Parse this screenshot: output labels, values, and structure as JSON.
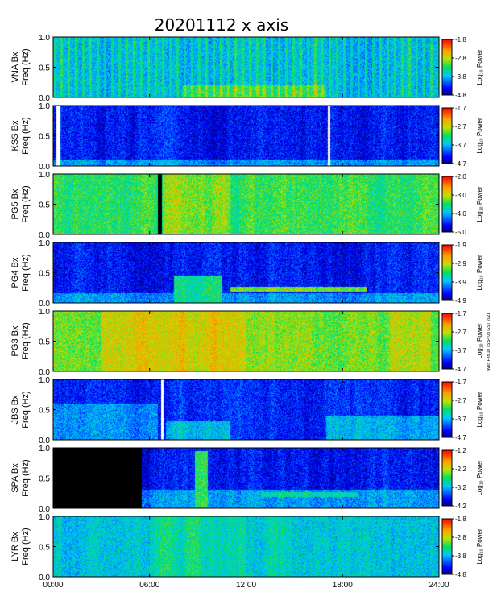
{
  "title": "20201112  x  axis",
  "footer_note": "Wed Feb 10 15:54:03 GST 2021",
  "x_axis": {
    "ticks": [
      "00:00",
      "06:00",
      "12:00",
      "18:00",
      "24:00"
    ],
    "tick_hours": [
      0,
      6,
      12,
      18,
      24
    ],
    "range_hours": [
      0,
      24
    ]
  },
  "chart_data": [
    {
      "type": "heatmap",
      "station_label": "VNA Bx",
      "ylabel": "Freq (Hz)",
      "ylim": [
        0.0,
        1.0
      ],
      "yticks": [
        "0.0",
        "0.5",
        "1.0"
      ],
      "colorbar_label": "Log₁₀ Power",
      "colorbar_ticks": [
        "-1.8",
        "-2.8",
        "-3.8",
        "-4.8"
      ],
      "colorbar_range": [
        -4.8,
        -1.8
      ],
      "background_level": 0.38,
      "vertical_stripes": true,
      "gaps": [],
      "features": [
        {
          "start_h": 8,
          "end_h": 17,
          "f_low": 0.0,
          "f_high": 0.2,
          "level": 0.55
        }
      ]
    },
    {
      "type": "heatmap",
      "station_label": "KSS Bx",
      "ylabel": "Freq (Hz)",
      "ylim": [
        0.0,
        1.0
      ],
      "yticks": [
        "0.0",
        "0.5",
        "1.0"
      ],
      "colorbar_label": "Log₁₀ Power",
      "colorbar_ticks": [
        "-1.7",
        "-2.7",
        "-3.7",
        "-4.7"
      ],
      "colorbar_range": [
        -4.7,
        -1.7
      ],
      "background_level": 0.14,
      "vertical_stripes": false,
      "gaps": [
        {
          "start_h": 0.2,
          "end_h": 0.45,
          "fill": "white"
        },
        {
          "start_h": 17.1,
          "end_h": 17.25,
          "fill": "white"
        }
      ],
      "features": [
        {
          "start_h": 0,
          "end_h": 24,
          "f_low": 0.0,
          "f_high": 0.1,
          "level": 0.3
        }
      ]
    },
    {
      "type": "heatmap",
      "station_label": "PG5 Bx",
      "ylabel": "Freq (Hz)",
      "ylim": [
        0.0,
        1.0
      ],
      "yticks": [
        "0.0",
        "0.5",
        "1.0"
      ],
      "colorbar_label": "Log₁₀ Power",
      "colorbar_ticks": [
        "-2.0",
        "-3.0",
        "-4.0",
        "-5.0"
      ],
      "colorbar_range": [
        -5.0,
        -2.0
      ],
      "background_level": 0.52,
      "vertical_stripes": false,
      "gaps": [
        {
          "start_h": 6.5,
          "end_h": 6.75,
          "fill": "black"
        }
      ],
      "features": [
        {
          "start_h": 6.8,
          "end_h": 11,
          "f_low": 0.0,
          "f_high": 1.0,
          "level": 0.62
        },
        {
          "start_h": 16.5,
          "end_h": 22,
          "f_low": 0.0,
          "f_high": 1.0,
          "level": 0.43
        }
      ]
    },
    {
      "type": "heatmap",
      "station_label": "PG4 Bx",
      "ylabel": "Freq (Hz)",
      "ylim": [
        0.0,
        1.0
      ],
      "yticks": [
        "0.0",
        "0.5",
        "1.0"
      ],
      "colorbar_label": "Log₁₀ Power",
      "colorbar_ticks": [
        "-1.9",
        "-2.9",
        "-3.9",
        "-4.9"
      ],
      "colorbar_range": [
        -4.9,
        -1.9
      ],
      "background_level": 0.14,
      "vertical_stripes": false,
      "gaps": [],
      "features": [
        {
          "start_h": 0,
          "end_h": 24,
          "f_low": 0.0,
          "f_high": 0.15,
          "level": 0.3
        },
        {
          "start_h": 7.5,
          "end_h": 10.5,
          "f_low": 0.0,
          "f_high": 0.45,
          "level": 0.45
        },
        {
          "start_h": 11,
          "end_h": 19.5,
          "f_low": 0.18,
          "f_high": 0.26,
          "level": 0.6
        }
      ]
    },
    {
      "type": "heatmap",
      "station_label": "PG3 Bx",
      "ylabel": "Freq (Hz)",
      "ylim": [
        0.0,
        1.0
      ],
      "yticks": [
        "0.0",
        "0.5",
        "1.0"
      ],
      "colorbar_label": "Log₁₀ Power",
      "colorbar_ticks": [
        "-1.7",
        "-2.7",
        "-3.7",
        "-4.7"
      ],
      "colorbar_range": [
        -4.7,
        -1.7
      ],
      "background_level": 0.6,
      "vertical_stripes": false,
      "gaps": [],
      "features": [
        {
          "start_h": 3,
          "end_h": 12,
          "f_low": 0.0,
          "f_high": 1.0,
          "level": 0.7
        },
        {
          "start_h": 21,
          "end_h": 23.5,
          "f_low": 0.0,
          "f_high": 1.0,
          "level": 0.68
        }
      ]
    },
    {
      "type": "heatmap",
      "station_label": "JBS Bx",
      "ylabel": "Freq (Hz)",
      "ylim": [
        0.0,
        1.0
      ],
      "yticks": [
        "0.0",
        "0.5",
        "1.0"
      ],
      "colorbar_label": "Log₁₀ Power",
      "colorbar_ticks": [
        "-1.7",
        "-2.7",
        "-3.7",
        "-4.7"
      ],
      "colorbar_range": [
        -4.7,
        -1.7
      ],
      "background_level": 0.16,
      "vertical_stripes": false,
      "gaps": [
        {
          "start_h": 6.7,
          "end_h": 6.85,
          "fill": "white"
        }
      ],
      "features": [
        {
          "start_h": 0,
          "end_h": 6.5,
          "f_low": 0.0,
          "f_high": 0.6,
          "level": 0.3
        },
        {
          "start_h": 7,
          "end_h": 11,
          "f_low": 0.0,
          "f_high": 0.3,
          "level": 0.35
        },
        {
          "start_h": 17,
          "end_h": 24,
          "f_low": 0.0,
          "f_high": 0.4,
          "level": 0.33
        }
      ]
    },
    {
      "type": "heatmap",
      "station_label": "SPA Bx",
      "ylabel": "Freq (Hz)",
      "ylim": [
        0.0,
        1.0
      ],
      "yticks": [
        "0.0",
        "0.5",
        "1.0"
      ],
      "colorbar_label": "Log₁₀ Power",
      "colorbar_ticks": [
        "-1.2",
        "-2.2",
        "-3.2",
        "-4.2"
      ],
      "colorbar_range": [
        -4.2,
        -1.2
      ],
      "background_level": 0.13,
      "vertical_stripes": false,
      "gaps": [
        {
          "start_h": 0,
          "end_h": 5.5,
          "fill": "black"
        }
      ],
      "features": [
        {
          "start_h": 5.5,
          "end_h": 24,
          "f_low": 0.0,
          "f_high": 0.3,
          "level": 0.3
        },
        {
          "start_h": 8.8,
          "end_h": 9.6,
          "f_low": 0.0,
          "f_high": 0.95,
          "level": 0.5
        },
        {
          "start_h": 13,
          "end_h": 19,
          "f_low": 0.18,
          "f_high": 0.26,
          "level": 0.45
        }
      ]
    },
    {
      "type": "heatmap",
      "station_label": "LYR Bx",
      "ylabel": "Freq (Hz)",
      "ylim": [
        0.0,
        1.0
      ],
      "yticks": [
        "0.0",
        "0.5",
        "1.0"
      ],
      "colorbar_label": "Log₁₀ Power",
      "colorbar_ticks": [
        "-1.8",
        "-2.8",
        "-3.8",
        "-4.8"
      ],
      "colorbar_range": [
        -4.8,
        -1.8
      ],
      "background_level": 0.38,
      "vertical_stripes": false,
      "gaps": [],
      "features": [
        {
          "start_h": 6,
          "end_h": 12,
          "f_low": 0.0,
          "f_high": 1.0,
          "level": 0.47
        }
      ]
    }
  ]
}
